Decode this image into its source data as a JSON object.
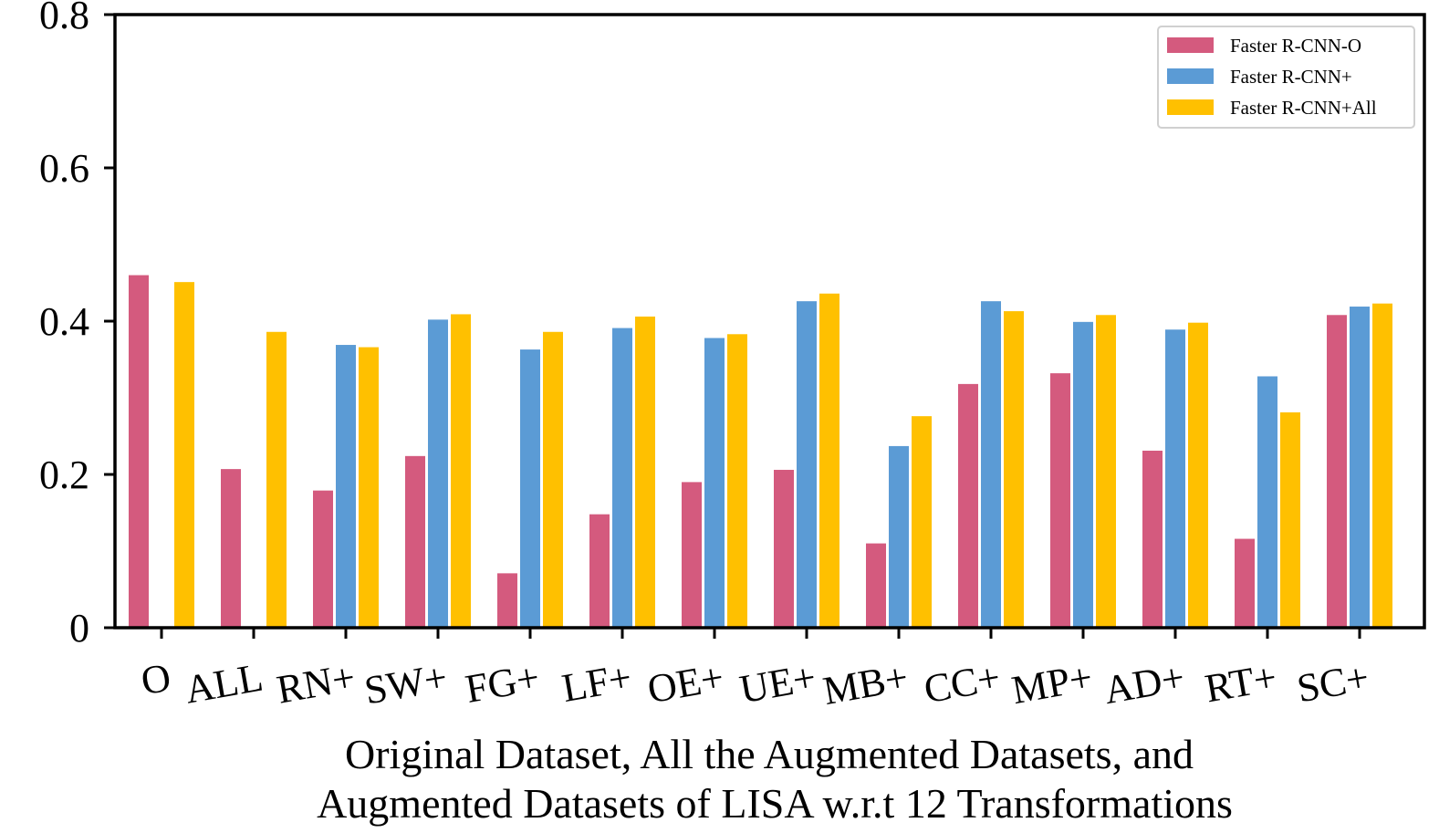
{
  "chart_data": {
    "type": "bar",
    "title": "",
    "xlabel_lines": [
      "Original Dataset, All the Augmented Datasets, and",
      "Augmented Datasets of LISA w.r.t 12 Transformations"
    ],
    "ylabel": "",
    "ylim": [
      0,
      0.8
    ],
    "yticks": [
      "0",
      "0.2",
      "0.4",
      "0.6",
      "0.8"
    ],
    "ytick_values": [
      0,
      0.2,
      0.4,
      0.6,
      0.8
    ],
    "categories": [
      "O",
      "ALL",
      "RN+",
      "SW+",
      "FG+",
      "LF+",
      "OE+",
      "UE+",
      "MB+",
      "CC+",
      "MP+",
      "AD+",
      "RT+",
      "SC+"
    ],
    "series": [
      {
        "name": "Faster R-CNN-O",
        "color": "#d45a7e",
        "values": [
          0.46,
          0.207,
          0.179,
          0.224,
          0.071,
          0.148,
          0.19,
          0.206,
          0.11,
          0.318,
          0.332,
          0.231,
          0.116,
          0.408
        ]
      },
      {
        "name": "Faster R-CNN+",
        "color": "#5b9bd5",
        "values": [
          null,
          null,
          0.369,
          0.402,
          0.363,
          0.391,
          0.378,
          0.426,
          0.237,
          0.426,
          0.399,
          0.389,
          0.328,
          0.419
        ]
      },
      {
        "name": "Faster R-CNN+All",
        "color": "#ffc000",
        "values": [
          0.451,
          0.386,
          0.366,
          0.409,
          0.386,
          0.406,
          0.383,
          0.436,
          0.276,
          0.413,
          0.408,
          0.398,
          0.281,
          0.423
        ]
      }
    ],
    "legend_position": "top-right",
    "grid": false
  }
}
